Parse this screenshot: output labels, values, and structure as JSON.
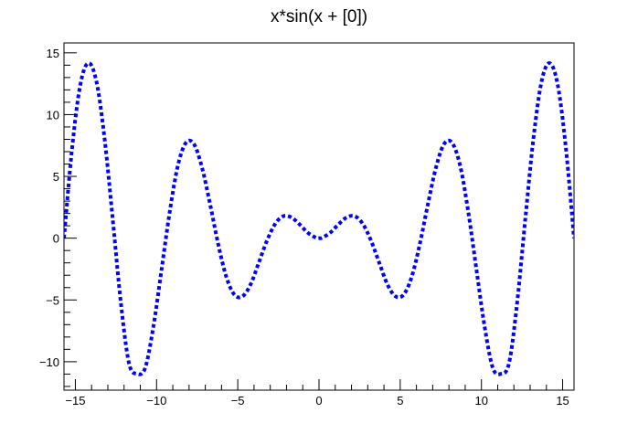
{
  "chart_data": {
    "type": "line",
    "title": "x*sin(x + [0])",
    "xlabel": "",
    "ylabel": "",
    "xlim": [
      -15.7,
      15.7
    ],
    "ylim": [
      -12.3,
      15.8
    ],
    "x_ticks": [
      -15,
      -10,
      -5,
      0,
      5,
      10,
      15
    ],
    "x_tick_labels": [
      "−15",
      "−10",
      "−5",
      "0",
      "5",
      "10",
      "15"
    ],
    "y_ticks": [
      -10,
      -5,
      0,
      5,
      10,
      15
    ],
    "y_tick_labels": [
      "−10",
      "−5",
      "0",
      "5",
      "10",
      "15"
    ],
    "grid": false,
    "legend": "none",
    "series": [
      {
        "color": "#0000ff",
        "line_style": "dotted",
        "x": [
          -15.7,
          -15.2,
          -14.7,
          -14.2,
          -13.7,
          -13.2,
          -12.7,
          -12.2,
          -11.7,
          -11.2,
          -10.7,
          -10.2,
          -9.7,
          -9.2,
          -8.7,
          -8.2,
          -7.7,
          -7.2,
          -6.7,
          -6.2,
          -5.7,
          -5.2,
          -4.7,
          -4.2,
          -3.7,
          -3.2,
          -2.7,
          -2.2,
          -1.7,
          -1.2,
          -0.7,
          -0.2,
          0.0,
          0.2,
          0.7,
          1.2,
          1.7,
          2.2,
          2.7,
          3.2,
          3.7,
          4.2,
          4.7,
          5.2,
          5.7,
          6.2,
          6.7,
          7.2,
          7.7,
          8.2,
          8.7,
          9.2,
          9.7,
          10.2,
          10.7,
          11.2,
          11.7,
          12.2,
          12.7,
          13.2,
          13.7,
          14.2,
          14.7,
          15.2,
          15.7
        ],
        "y": [
          0.0,
          7.29,
          12.38,
          14.17,
          12.67,
          8.05,
          1.54,
          -5.21,
          -10.11,
          -10.98,
          -10.5,
          -7.19,
          -2.62,
          2.04,
          5.81,
          7.71,
          7.62,
          5.71,
          2.72,
          -0.52,
          -3.16,
          -4.59,
          -4.7,
          -3.71,
          -1.96,
          -0.19,
          1.15,
          1.78,
          1.68,
          1.12,
          0.45,
          0.04,
          0.0,
          0.04,
          0.45,
          1.12,
          1.68,
          1.78,
          1.15,
          -0.19,
          -1.96,
          -3.71,
          -4.7,
          -4.59,
          -3.16,
          -0.52,
          2.72,
          5.71,
          7.62,
          7.71,
          5.81,
          2.04,
          -2.62,
          -7.19,
          -10.5,
          -10.98,
          -10.11,
          -5.21,
          1.54,
          8.05,
          12.67,
          14.17,
          12.38,
          7.29,
          0.0
        ]
      }
    ]
  }
}
